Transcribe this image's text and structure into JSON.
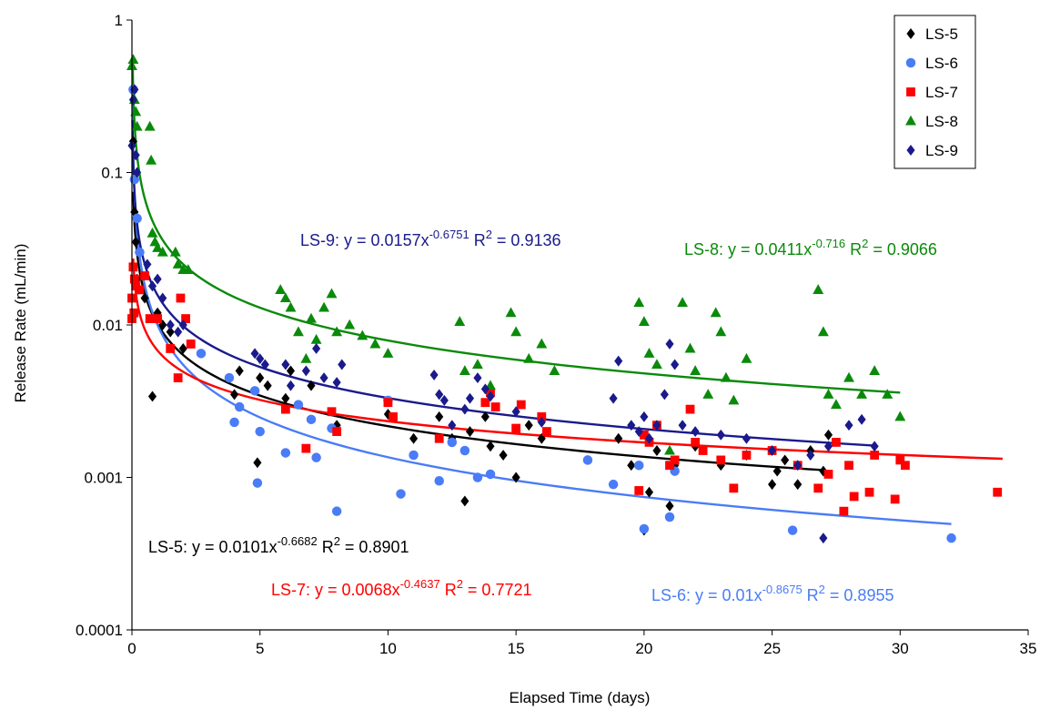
{
  "chart_data": {
    "type": "scatter",
    "title": "",
    "xlabel": "Elapsed Time (days)",
    "ylabel": "Release Rate (mL/min)",
    "xlim": [
      0,
      35
    ],
    "ylim": [
      0.0001,
      1
    ],
    "y_scale": "log",
    "grid": false,
    "legend_position": "top-right",
    "x_ticks": [
      0,
      5,
      10,
      15,
      20,
      25,
      30,
      35
    ],
    "x_tick_labels": [
      "0",
      "5",
      "10",
      "15",
      "20",
      "25",
      "30",
      "35"
    ],
    "y_ticks": [
      0.0001,
      0.001,
      0.01,
      0.1,
      1
    ],
    "y_tick_labels": [
      "0.0001",
      "0.001",
      "0.01",
      "0.1",
      "1"
    ],
    "series": [
      {
        "name": "LS-5",
        "color": "#000000",
        "marker": "diamond",
        "fit": {
          "a": 0.0101,
          "b": -0.6682,
          "x_range": [
            0.05,
            27
          ]
        },
        "equation": "LS-5: y = 0.0101x",
        "exponent": "-0.6682",
        "r2_text": " R",
        "r2_sup": "2",
        "r2_value": " = 0.8901",
        "points": [
          [
            0.05,
            0.16
          ],
          [
            0.08,
            0.09
          ],
          [
            0.1,
            0.055
          ],
          [
            0.15,
            0.035
          ],
          [
            0.2,
            0.02
          ],
          [
            0.5,
            0.015
          ],
          [
            0.8,
            0.0034
          ],
          [
            1.0,
            0.012
          ],
          [
            1.2,
            0.01
          ],
          [
            1.5,
            0.009
          ],
          [
            2.0,
            0.007
          ],
          [
            4.0,
            0.0035
          ],
          [
            4.2,
            0.005
          ],
          [
            4.9,
            0.00125
          ],
          [
            5.0,
            0.0045
          ],
          [
            5.3,
            0.004
          ],
          [
            6.0,
            0.0033
          ],
          [
            6.2,
            0.005
          ],
          [
            7.0,
            0.004
          ],
          [
            8.0,
            0.0022
          ],
          [
            10.0,
            0.0026
          ],
          [
            11.0,
            0.0018
          ],
          [
            12.0,
            0.0025
          ],
          [
            12.5,
            0.0018
          ],
          [
            13.0,
            0.0007
          ],
          [
            13.2,
            0.002
          ],
          [
            13.8,
            0.0025
          ],
          [
            14.0,
            0.0016
          ],
          [
            14.5,
            0.0014
          ],
          [
            15.0,
            0.001
          ],
          [
            15.5,
            0.0022
          ],
          [
            16.0,
            0.0018
          ],
          [
            19.0,
            0.0018
          ],
          [
            19.5,
            0.0012
          ],
          [
            20.0,
            0.00045
          ],
          [
            20.2,
            0.0008
          ],
          [
            20.5,
            0.0015
          ],
          [
            21.0,
            0.00065
          ],
          [
            21.2,
            0.0012
          ],
          [
            22.0,
            0.0016
          ],
          [
            23.0,
            0.0012
          ],
          [
            24.0,
            0.0014
          ],
          [
            25.0,
            0.0009
          ],
          [
            25.2,
            0.0011
          ],
          [
            25.5,
            0.0013
          ],
          [
            26.0,
            0.0009
          ],
          [
            26.5,
            0.0015
          ],
          [
            27.0,
            0.0011
          ],
          [
            27.2,
            0.0019
          ]
        ]
      },
      {
        "name": "LS-6",
        "color": "#4a7cf7",
        "marker": "circle",
        "fit": {
          "a": 0.01,
          "b": -0.8675,
          "x_range": [
            0.02,
            32
          ]
        },
        "equation": "LS-6: y = 0.01x",
        "exponent": "-0.8675",
        "r2_text": " R",
        "r2_sup": "2",
        "r2_value": " = 0.8955",
        "points": [
          [
            0.05,
            0.35
          ],
          [
            0.1,
            0.09
          ],
          [
            0.2,
            0.05
          ],
          [
            0.3,
            0.03
          ],
          [
            2.7,
            0.0065
          ],
          [
            3.8,
            0.0045
          ],
          [
            4.0,
            0.0023
          ],
          [
            4.2,
            0.0029
          ],
          [
            4.8,
            0.0037
          ],
          [
            4.9,
            0.00092
          ],
          [
            5.0,
            0.002
          ],
          [
            6.0,
            0.00145
          ],
          [
            6.5,
            0.003
          ],
          [
            7.0,
            0.0024
          ],
          [
            7.2,
            0.00135
          ],
          [
            7.8,
            0.0021
          ],
          [
            8.0,
            0.0006
          ],
          [
            10.0,
            0.0032
          ],
          [
            10.5,
            0.00078
          ],
          [
            11.0,
            0.0014
          ],
          [
            12.0,
            0.00095
          ],
          [
            12.5,
            0.0017
          ],
          [
            13.0,
            0.0015
          ],
          [
            13.5,
            0.001
          ],
          [
            14.0,
            0.00105
          ],
          [
            17.8,
            0.0013
          ],
          [
            18.8,
            0.0009
          ],
          [
            19.8,
            0.0012
          ],
          [
            20.0,
            0.00046
          ],
          [
            21.0,
            0.00055
          ],
          [
            21.2,
            0.0011
          ],
          [
            25.8,
            0.00045
          ],
          [
            32.0,
            0.0004
          ]
        ]
      },
      {
        "name": "LS-7",
        "color": "#ff0000",
        "marker": "square",
        "fit": {
          "a": 0.0068,
          "b": -0.4637,
          "x_range": [
            0.05,
            34
          ]
        },
        "equation": "LS-7: y = 0.0068x",
        "exponent": "-0.4637",
        "r2_text": " R",
        "r2_sup": "2",
        "r2_value": " = 0.7721",
        "points": [
          [
            0.0,
            0.011
          ],
          [
            0.0,
            0.015
          ],
          [
            0.05,
            0.024
          ],
          [
            0.08,
            0.012
          ],
          [
            0.1,
            0.02
          ],
          [
            0.15,
            0.018
          ],
          [
            0.3,
            0.017
          ],
          [
            0.5,
            0.021
          ],
          [
            0.7,
            0.011
          ],
          [
            1.0,
            0.011
          ],
          [
            1.5,
            0.007
          ],
          [
            1.8,
            0.0045
          ],
          [
            1.9,
            0.015
          ],
          [
            2.1,
            0.011
          ],
          [
            2.3,
            0.0075
          ],
          [
            6.0,
            0.0028
          ],
          [
            6.8,
            0.00155
          ],
          [
            7.8,
            0.0027
          ],
          [
            8.0,
            0.002
          ],
          [
            10.0,
            0.0031
          ],
          [
            10.2,
            0.0025
          ],
          [
            12.0,
            0.0018
          ],
          [
            13.8,
            0.0031
          ],
          [
            14.0,
            0.0036
          ],
          [
            14.2,
            0.0029
          ],
          [
            15.0,
            0.0021
          ],
          [
            15.2,
            0.003
          ],
          [
            16.0,
            0.0025
          ],
          [
            16.2,
            0.002
          ],
          [
            19.8,
            0.00082
          ],
          [
            20.0,
            0.0019
          ],
          [
            20.2,
            0.0017
          ],
          [
            20.5,
            0.0022
          ],
          [
            21.0,
            0.0012
          ],
          [
            21.2,
            0.0013
          ],
          [
            21.8,
            0.0028
          ],
          [
            22.0,
            0.0017
          ],
          [
            22.3,
            0.0015
          ],
          [
            23.0,
            0.0013
          ],
          [
            23.5,
            0.00085
          ],
          [
            24.0,
            0.0014
          ],
          [
            25.0,
            0.0015
          ],
          [
            26.0,
            0.0012
          ],
          [
            26.8,
            0.00085
          ],
          [
            27.2,
            0.00105
          ],
          [
            27.5,
            0.0017
          ],
          [
            27.8,
            0.0006
          ],
          [
            28.0,
            0.0012
          ],
          [
            28.2,
            0.00075
          ],
          [
            28.8,
            0.0008
          ],
          [
            29.0,
            0.0014
          ],
          [
            29.8,
            0.00072
          ],
          [
            30.0,
            0.0013
          ],
          [
            30.2,
            0.0012
          ],
          [
            33.8,
            0.0008
          ]
        ]
      },
      {
        "name": "LS-8",
        "color": "#0a8a0a",
        "marker": "triangle",
        "fit": {
          "a": 0.0411,
          "b": -0.716,
          "x_range": [
            0.03,
            30
          ]
        },
        "equation": "LS-8: y = 0.0411x",
        "exponent": "-0.716",
        "r2_text": " R",
        "r2_sup": "2",
        "r2_value": " = 0.9066",
        "points": [
          [
            0.0,
            0.5
          ],
          [
            0.05,
            0.55
          ],
          [
            0.1,
            0.3
          ],
          [
            0.15,
            0.25
          ],
          [
            0.2,
            0.2
          ],
          [
            0.7,
            0.2
          ],
          [
            0.75,
            0.12
          ],
          [
            0.8,
            0.04
          ],
          [
            0.9,
            0.035
          ],
          [
            1.0,
            0.032
          ],
          [
            1.2,
            0.03
          ],
          [
            1.7,
            0.03
          ],
          [
            1.8,
            0.025
          ],
          [
            2.0,
            0.023
          ],
          [
            2.2,
            0.023
          ],
          [
            5.8,
            0.017
          ],
          [
            6.0,
            0.015
          ],
          [
            6.2,
            0.013
          ],
          [
            6.5,
            0.009
          ],
          [
            6.8,
            0.006
          ],
          [
            7.0,
            0.011
          ],
          [
            7.2,
            0.008
          ],
          [
            7.5,
            0.013
          ],
          [
            7.8,
            0.016
          ],
          [
            8.0,
            0.009
          ],
          [
            8.5,
            0.01
          ],
          [
            9.0,
            0.0085
          ],
          [
            9.5,
            0.0075
          ],
          [
            10.0,
            0.0065
          ],
          [
            12.8,
            0.0105
          ],
          [
            13.0,
            0.005
          ],
          [
            13.5,
            0.0055
          ],
          [
            14.0,
            0.004
          ],
          [
            14.8,
            0.012
          ],
          [
            15.0,
            0.009
          ],
          [
            15.5,
            0.006
          ],
          [
            16.0,
            0.0075
          ],
          [
            16.5,
            0.005
          ],
          [
            19.8,
            0.014
          ],
          [
            20.0,
            0.0105
          ],
          [
            20.2,
            0.0065
          ],
          [
            20.5,
            0.0055
          ],
          [
            21.0,
            0.0015
          ],
          [
            21.5,
            0.014
          ],
          [
            21.8,
            0.007
          ],
          [
            22.0,
            0.005
          ],
          [
            22.5,
            0.0035
          ],
          [
            22.8,
            0.012
          ],
          [
            23.0,
            0.009
          ],
          [
            23.2,
            0.0045
          ],
          [
            23.5,
            0.0032
          ],
          [
            24.0,
            0.006
          ],
          [
            26.8,
            0.017
          ],
          [
            27.0,
            0.009
          ],
          [
            27.2,
            0.0035
          ],
          [
            27.5,
            0.003
          ],
          [
            28.0,
            0.0045
          ],
          [
            28.5,
            0.0035
          ],
          [
            29.0,
            0.005
          ],
          [
            29.5,
            0.0035
          ],
          [
            30.0,
            0.0025
          ]
        ]
      },
      {
        "name": "LS-9",
        "color": "#1a1a8c",
        "marker": "diamond",
        "fit": {
          "a": 0.0157,
          "b": -0.6751,
          "x_range": [
            0.02,
            29
          ]
        },
        "equation": "LS-9: y = 0.0157x",
        "exponent": "-0.6751",
        "r2_text": " R",
        "r2_sup": "2",
        "r2_value": " = 0.9136",
        "points": [
          [
            0.0,
            0.15
          ],
          [
            0.05,
            0.3
          ],
          [
            0.1,
            0.35
          ],
          [
            0.15,
            0.13
          ],
          [
            0.2,
            0.1
          ],
          [
            0.6,
            0.025
          ],
          [
            0.8,
            0.018
          ],
          [
            1.0,
            0.02
          ],
          [
            1.2,
            0.015
          ],
          [
            1.5,
            0.01
          ],
          [
            1.8,
            0.009
          ],
          [
            2.0,
            0.01
          ],
          [
            4.8,
            0.0065
          ],
          [
            5.0,
            0.006
          ],
          [
            5.2,
            0.0055
          ],
          [
            6.0,
            0.0055
          ],
          [
            6.2,
            0.004
          ],
          [
            6.8,
            0.005
          ],
          [
            7.2,
            0.007
          ],
          [
            7.5,
            0.0045
          ],
          [
            8.0,
            0.0042
          ],
          [
            8.2,
            0.0055
          ],
          [
            11.8,
            0.0047
          ],
          [
            12.0,
            0.0035
          ],
          [
            12.2,
            0.0032
          ],
          [
            12.5,
            0.0022
          ],
          [
            13.0,
            0.0028
          ],
          [
            13.2,
            0.0033
          ],
          [
            13.5,
            0.0045
          ],
          [
            13.8,
            0.0038
          ],
          [
            14.0,
            0.0034
          ],
          [
            15.0,
            0.0027
          ],
          [
            16.0,
            0.0023
          ],
          [
            18.8,
            0.0033
          ],
          [
            19.0,
            0.0058
          ],
          [
            19.5,
            0.0022
          ],
          [
            19.8,
            0.002
          ],
          [
            20.0,
            0.0025
          ],
          [
            20.2,
            0.0018
          ],
          [
            20.5,
            0.0022
          ],
          [
            20.8,
            0.0035
          ],
          [
            21.0,
            0.0075
          ],
          [
            21.2,
            0.0055
          ],
          [
            21.5,
            0.0022
          ],
          [
            22.0,
            0.002
          ],
          [
            23.0,
            0.0019
          ],
          [
            24.0,
            0.0018
          ],
          [
            25.0,
            0.0015
          ],
          [
            26.0,
            0.0012
          ],
          [
            26.5,
            0.0014
          ],
          [
            27.0,
            0.0004
          ],
          [
            27.2,
            0.0016
          ],
          [
            28.0,
            0.0022
          ],
          [
            28.5,
            0.0024
          ],
          [
            29.0,
            0.0016
          ]
        ]
      }
    ]
  }
}
